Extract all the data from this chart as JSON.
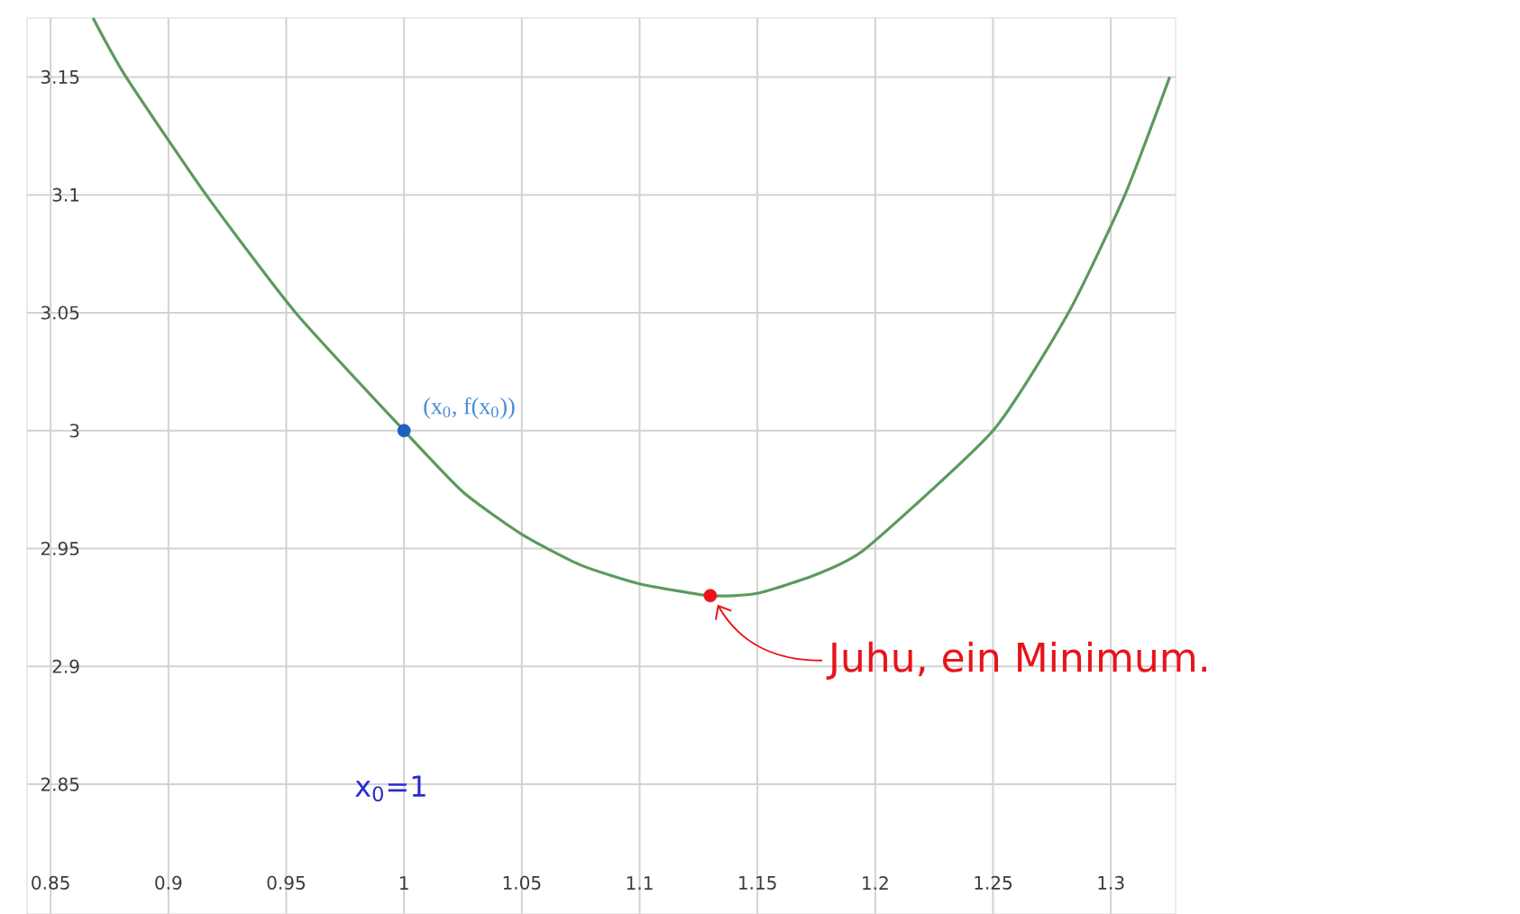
{
  "chart_data": {
    "type": "line",
    "x": [
      0.868,
      0.882,
      0.916,
      0.954,
      1.0,
      1.025,
      1.05,
      1.075,
      1.1,
      1.13,
      1.15,
      1.175,
      1.196,
      1.25,
      1.282,
      1.306,
      1.325
    ],
    "series": [
      {
        "color": "#5b9a5e",
        "values": [
          3.175,
          3.15,
          3.1,
          3.05,
          3.0,
          2.974,
          2.956,
          2.943,
          2.935,
          2.93,
          2.931,
          2.939,
          2.95,
          3.0,
          3.05,
          3.1,
          3.15
        ]
      },
      {
        "type": "scatter",
        "x": [
          1.0
        ],
        "values": [
          3.0
        ],
        "color": "#1f5fbf"
      },
      {
        "type": "scatter",
        "x": [
          1.13
        ],
        "values": [
          2.93
        ],
        "color": "#e8141a"
      }
    ],
    "xlim": [
      0.84,
      1.3275
    ],
    "ylim": [
      2.795,
      3.175
    ],
    "xticks": [
      0.85,
      0.9,
      0.95,
      1,
      1.05,
      1.1,
      1.15,
      1.2,
      1.25,
      1.3
    ],
    "yticks": [
      2.85,
      2.9,
      2.95,
      3,
      3.05,
      3.1,
      3.15
    ],
    "grid": true,
    "line_style": "solid",
    "annotations": [
      {
        "text": "(x$_{0}$, f(x$_{0}$))",
        "x": 1.0,
        "y": 3.0
      },
      {
        "text": "Juhu, ein Minimum.",
        "x": 1.13,
        "y": 2.93
      },
      "x$_{0}$=1"
    ]
  }
}
